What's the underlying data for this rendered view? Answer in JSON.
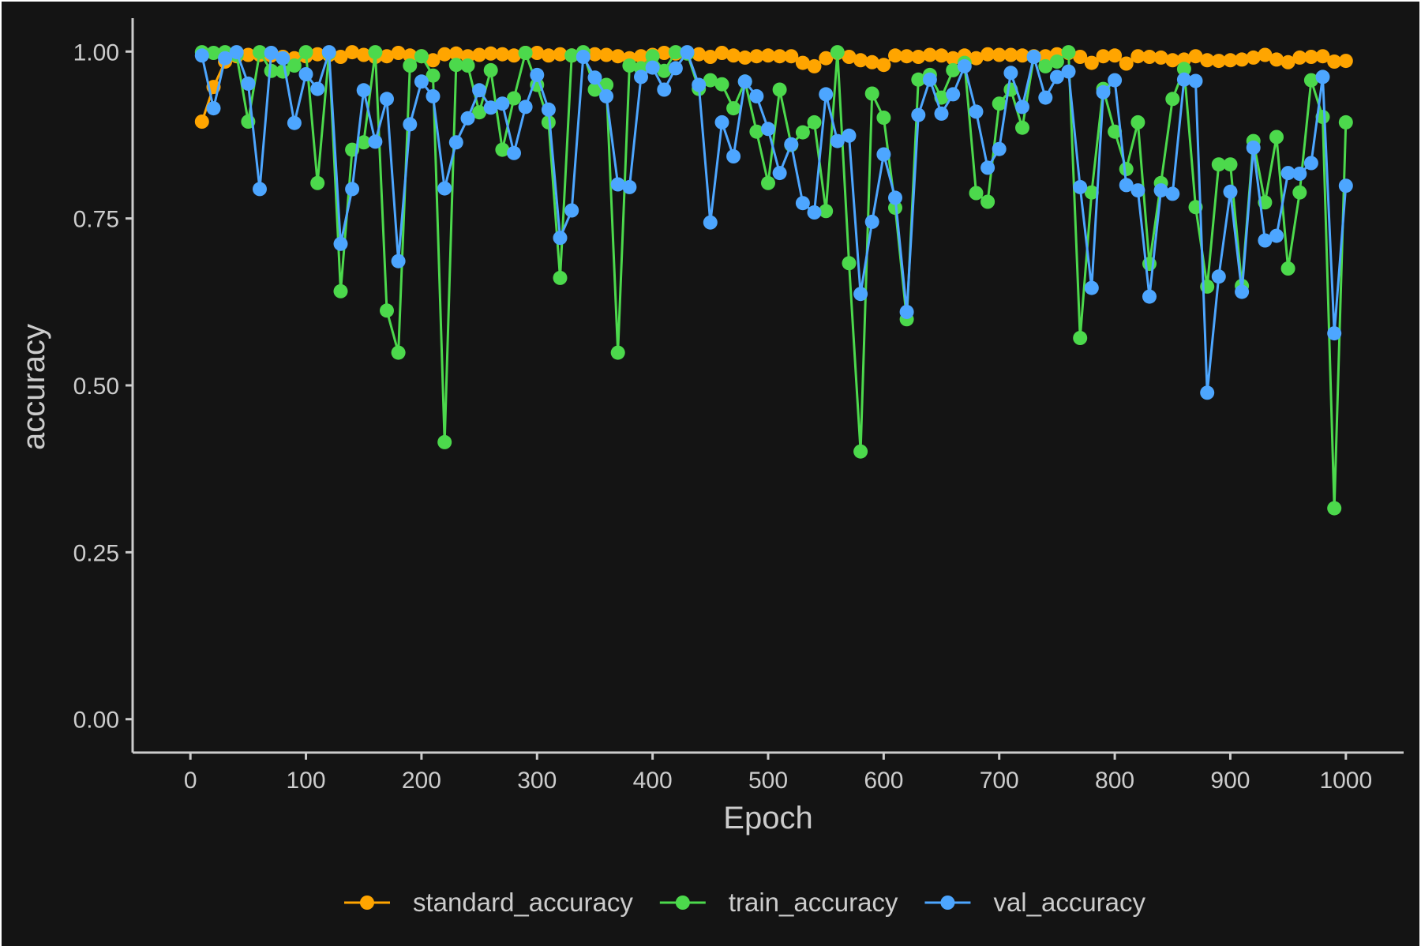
{
  "chart_data": {
    "type": "line",
    "xlabel": "Epoch",
    "ylabel": "accuracy",
    "xlim": [
      -50,
      1050
    ],
    "ylim": [
      -0.05,
      1.05
    ],
    "x_ticks": [
      0,
      100,
      200,
      300,
      400,
      500,
      600,
      700,
      800,
      900,
      1000
    ],
    "x_tick_labels": [
      "0",
      "100",
      "200",
      "300",
      "400",
      "500",
      "600",
      "700",
      "800",
      "900",
      "1000"
    ],
    "y_ticks": [
      0,
      0.25,
      0.5,
      0.75,
      1.0
    ],
    "y_tick_labels": [
      "0.00",
      "0.25",
      "0.50",
      "0.75",
      "1.00"
    ],
    "grid": false,
    "legend_position": "bottom",
    "x": [
      10,
      20,
      30,
      40,
      50,
      60,
      70,
      80,
      90,
      100,
      110,
      120,
      130,
      140,
      150,
      160,
      170,
      180,
      190,
      200,
      210,
      220,
      230,
      240,
      250,
      260,
      270,
      280,
      290,
      300,
      310,
      320,
      330,
      340,
      350,
      360,
      370,
      380,
      390,
      400,
      410,
      420,
      430,
      440,
      450,
      460,
      470,
      480,
      490,
      500,
      510,
      520,
      530,
      540,
      550,
      560,
      570,
      580,
      590,
      600,
      610,
      620,
      630,
      640,
      650,
      660,
      670,
      680,
      690,
      700,
      710,
      720,
      730,
      740,
      750,
      760,
      770,
      780,
      790,
      800,
      810,
      820,
      830,
      840,
      850,
      860,
      870,
      880,
      890,
      900,
      910,
      920,
      930,
      940,
      950,
      960,
      970,
      980,
      990,
      1000
    ],
    "series": [
      {
        "name": "standard_accuracy",
        "color": "#FFA500",
        "values": [
          0.895,
          0.947,
          0.985,
          0.993,
          0.995,
          0.995,
          0.994,
          0.992,
          0.99,
          0.993,
          0.996,
          0.995,
          0.992,
          0.999,
          0.995,
          0.992,
          0.993,
          0.998,
          0.994,
          0.993,
          0.987,
          0.996,
          0.997,
          0.993,
          0.995,
          0.997,
          0.996,
          0.994,
          0.998,
          0.998,
          0.994,
          0.996,
          0.994,
          0.998,
          0.996,
          0.995,
          0.993,
          0.99,
          0.993,
          0.995,
          0.998,
          0.997,
          0.998,
          0.996,
          0.992,
          0.998,
          0.994,
          0.991,
          0.993,
          0.994,
          0.993,
          0.993,
          0.983,
          0.978,
          0.99,
          0.998,
          0.992,
          0.987,
          0.984,
          0.98,
          0.994,
          0.993,
          0.992,
          0.995,
          0.994,
          0.99,
          0.994,
          0.99,
          0.996,
          0.995,
          0.995,
          0.994,
          0.993,
          0.993,
          0.996,
          0.998,
          0.992,
          0.983,
          0.993,
          0.994,
          0.982,
          0.993,
          0.992,
          0.991,
          0.987,
          0.988,
          0.993,
          0.987,
          0.986,
          0.987,
          0.988,
          0.991,
          0.995,
          0.988,
          0.984,
          0.991,
          0.992,
          0.993,
          0.985,
          0.986
        ]
      },
      {
        "name": "train_accuracy",
        "color": "#4CD94C",
        "values": [
          0.999,
          0.998,
          0.999,
          0.995,
          0.895,
          0.999,
          0.971,
          0.97,
          0.979,
          0.999,
          0.803,
          0.998,
          0.641,
          0.853,
          0.864,
          0.999,
          0.612,
          0.549,
          0.979,
          0.993,
          0.964,
          0.415,
          0.98,
          0.979,
          0.909,
          0.972,
          0.853,
          0.93,
          0.998,
          0.95,
          0.894,
          0.661,
          0.994,
          0.999,
          0.943,
          0.95,
          0.549,
          0.979,
          0.975,
          0.993,
          0.971,
          0.999,
          0.997,
          0.944,
          0.957,
          0.951,
          0.915,
          0.955,
          0.88,
          0.803,
          0.943,
          0.86,
          0.879,
          0.894,
          0.761,
          0.999,
          0.683,
          0.401,
          0.937,
          0.901,
          0.766,
          0.599,
          0.958,
          0.965,
          0.931,
          0.972,
          0.983,
          0.788,
          0.775,
          0.922,
          0.943,
          0.886,
          0.992,
          0.978,
          0.985,
          0.999,
          0.571,
          0.789,
          0.944,
          0.88,
          0.824,
          0.894,
          0.682,
          0.803,
          0.929,
          0.974,
          0.767,
          0.648,
          0.831,
          0.831,
          0.649,
          0.866,
          0.774,
          0.872,
          0.675,
          0.789,
          0.957,
          0.902,
          0.316,
          0.894
        ]
      },
      {
        "name": "val_accuracy",
        "color": "#4DA6FF",
        "values": [
          0.994,
          0.915,
          0.99,
          0.999,
          0.952,
          0.794,
          0.998,
          0.99,
          0.893,
          0.966,
          0.944,
          0.999,
          0.712,
          0.794,
          0.942,
          0.865,
          0.929,
          0.686,
          0.891,
          0.955,
          0.933,
          0.795,
          0.864,
          0.9,
          0.942,
          0.916,
          0.922,
          0.848,
          0.917,
          0.965,
          0.913,
          0.721,
          0.762,
          0.992,
          0.961,
          0.933,
          0.801,
          0.797,
          0.962,
          0.976,
          0.943,
          0.975,
          0.999,
          0.95,
          0.744,
          0.894,
          0.843,
          0.955,
          0.933,
          0.884,
          0.818,
          0.861,
          0.773,
          0.759,
          0.936,
          0.866,
          0.874,
          0.637,
          0.745,
          0.846,
          0.781,
          0.61,
          0.905,
          0.958,
          0.907,
          0.936,
          0.978,
          0.91,
          0.826,
          0.854,
          0.968,
          0.917,
          0.992,
          0.931,
          0.962,
          0.97,
          0.797,
          0.646,
          0.939,
          0.957,
          0.8,
          0.792,
          0.633,
          0.792,
          0.787,
          0.958,
          0.956,
          0.489,
          0.663,
          0.79,
          0.64,
          0.856,
          0.717,
          0.724,
          0.818,
          0.817,
          0.833,
          0.962,
          0.578,
          0.799
        ]
      }
    ]
  }
}
